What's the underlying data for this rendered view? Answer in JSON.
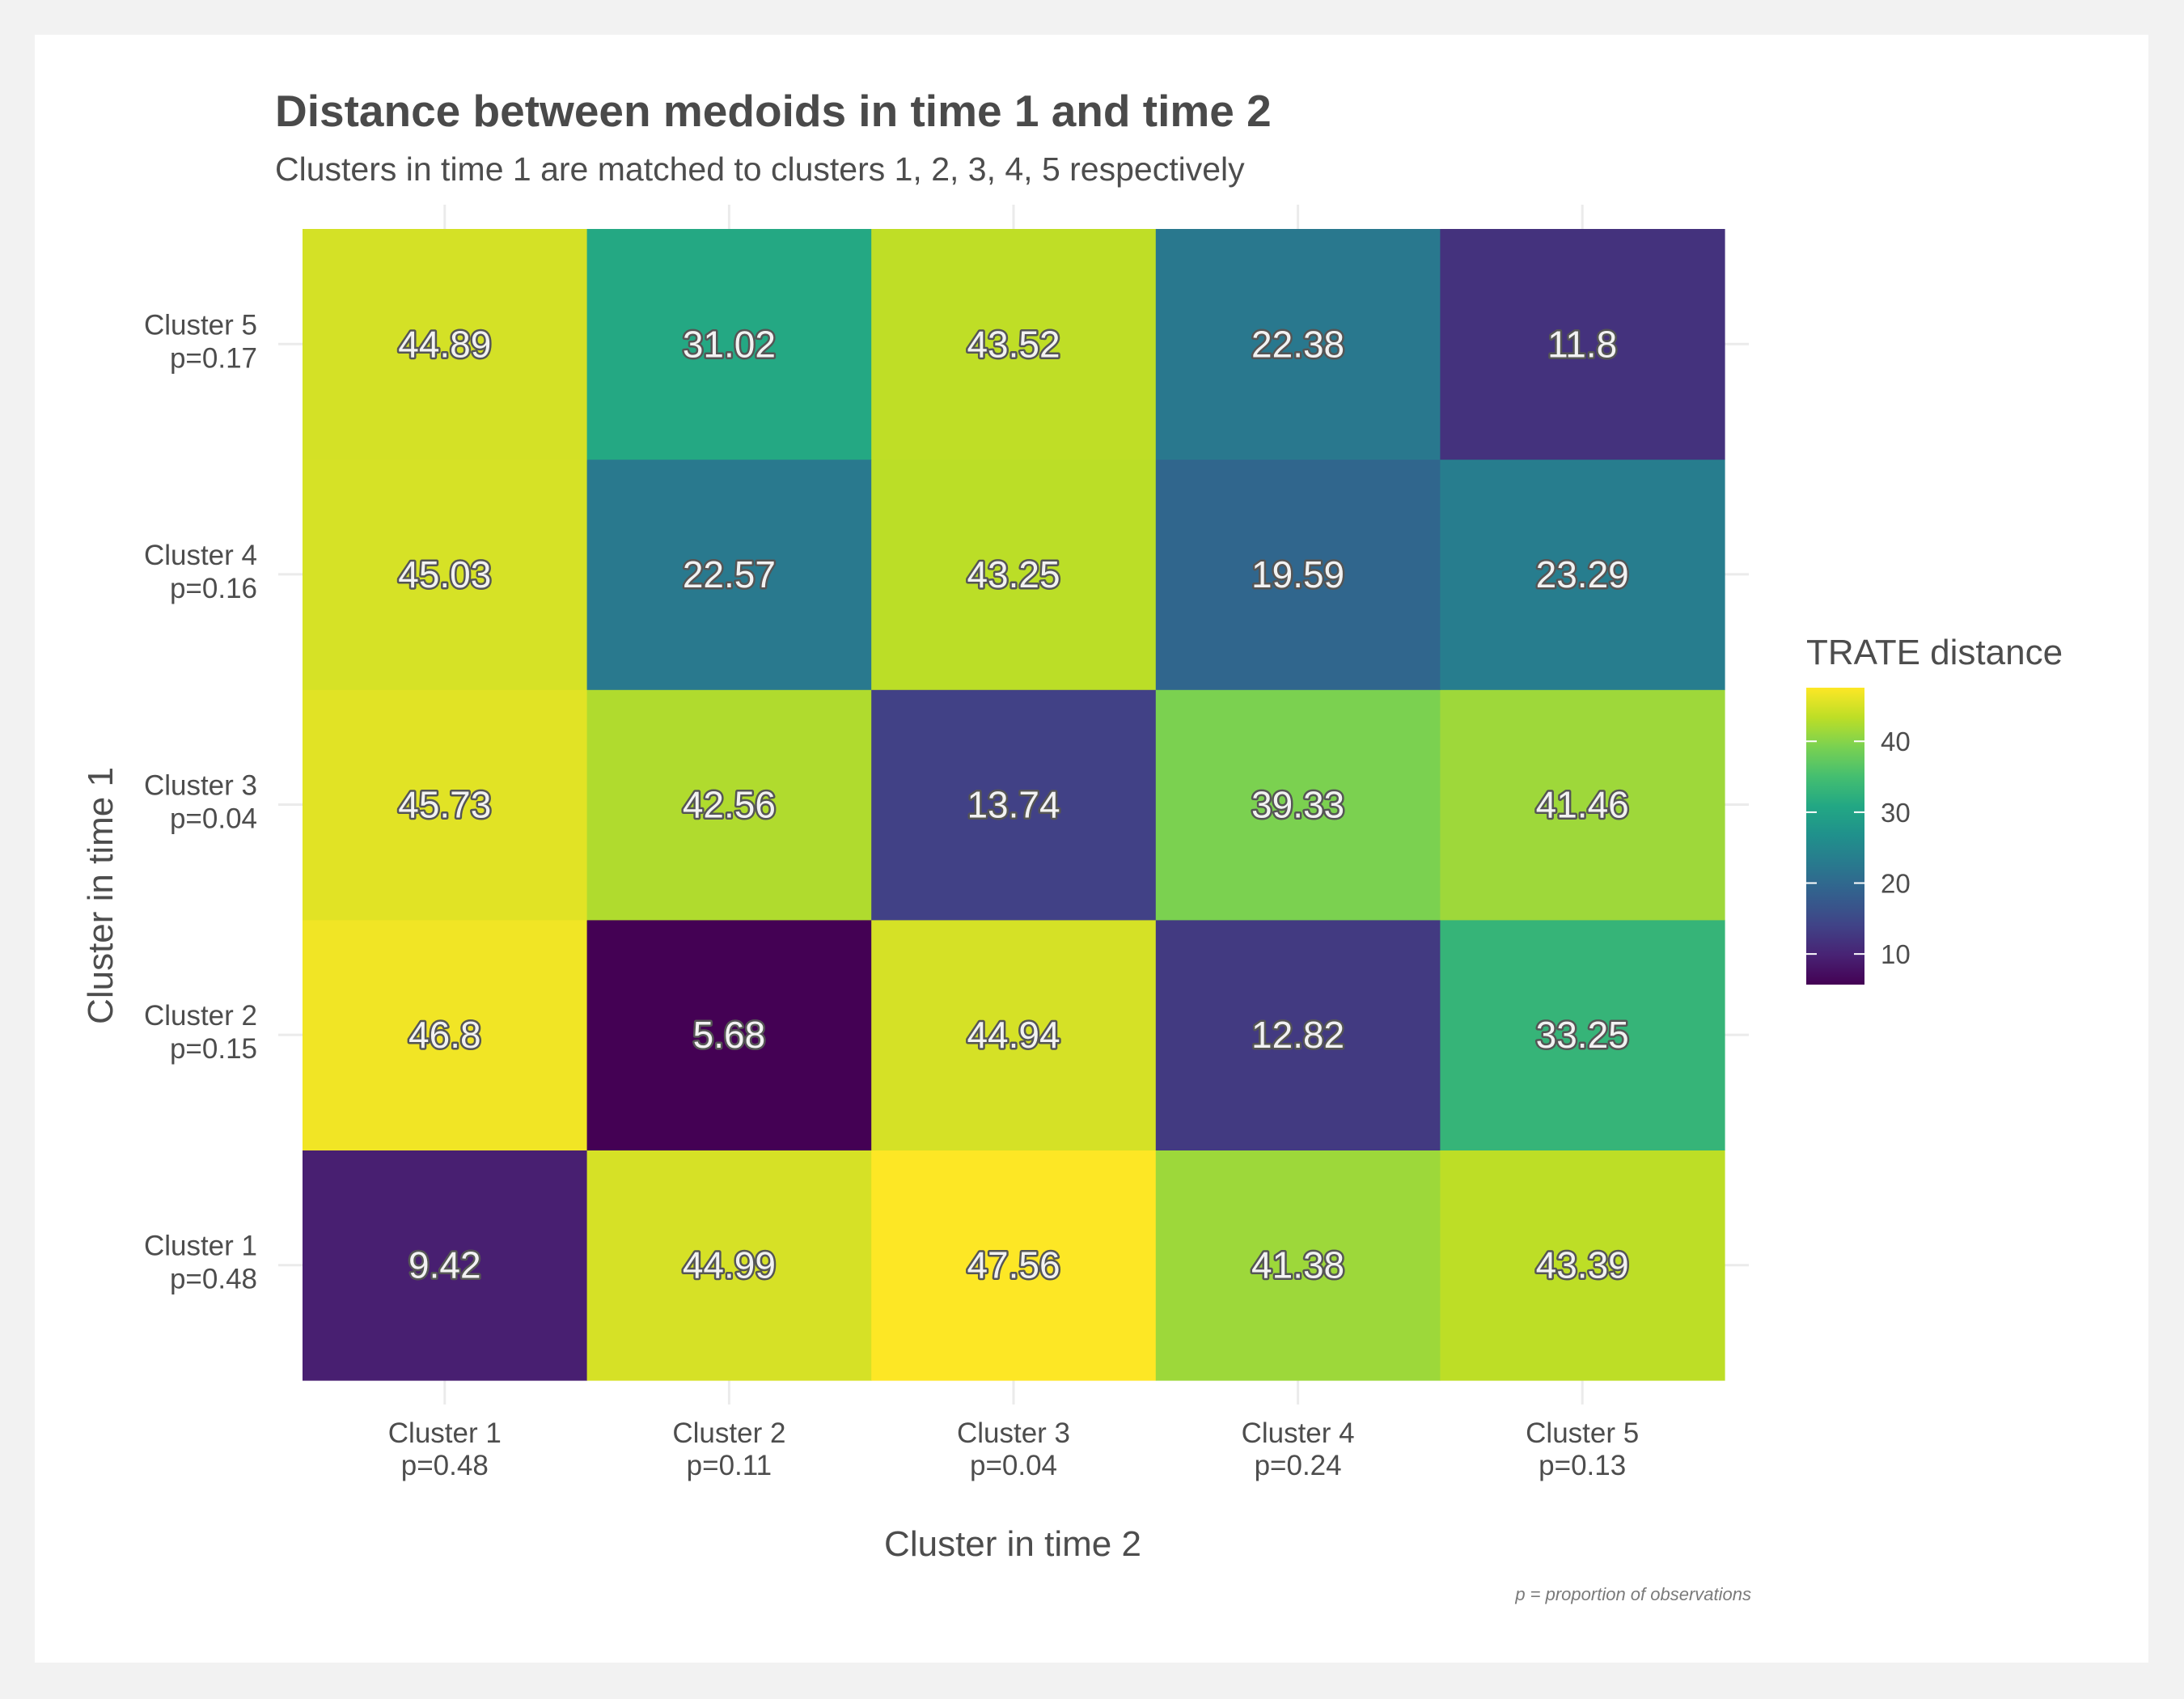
{
  "chart_data": {
    "type": "heatmap",
    "title": "Distance between medoids in time 1 and time 2",
    "subtitle": "Clusters in time 1 are matched to clusters 1, 2, 3, 4, 5 respectively",
    "xlabel": "Cluster in time 2",
    "ylabel": "Cluster in time 1",
    "x_categories": [
      {
        "name": "Cluster 1",
        "p": "p=0.48"
      },
      {
        "name": "Cluster 2",
        "p": "p=0.11"
      },
      {
        "name": "Cluster 3",
        "p": "p=0.04"
      },
      {
        "name": "Cluster 4",
        "p": "p=0.24"
      },
      {
        "name": "Cluster 5",
        "p": "p=0.13"
      }
    ],
    "y_categories": [
      {
        "name": "Cluster 1",
        "p": "p=0.48"
      },
      {
        "name": "Cluster 2",
        "p": "p=0.15"
      },
      {
        "name": "Cluster 3",
        "p": "p=0.04"
      },
      {
        "name": "Cluster 4",
        "p": "p=0.16"
      },
      {
        "name": "Cluster 5",
        "p": "p=0.17"
      }
    ],
    "values": [
      [
        9.42,
        44.99,
        47.56,
        41.38,
        43.39
      ],
      [
        46.8,
        5.68,
        44.94,
        12.82,
        33.25
      ],
      [
        45.73,
        42.56,
        13.74,
        39.33,
        41.46
      ],
      [
        45.03,
        22.57,
        43.25,
        19.59,
        23.29
      ],
      [
        44.89,
        31.02,
        43.52,
        22.38,
        11.8
      ]
    ],
    "legend": {
      "title": "TRATE distance",
      "ticks": [
        10,
        20,
        30,
        40
      ],
      "colormap": "viridis",
      "range": [
        5.68,
        47.56
      ],
      "placement": "right"
    },
    "caption": "p = proportion of observations",
    "grid": true
  }
}
